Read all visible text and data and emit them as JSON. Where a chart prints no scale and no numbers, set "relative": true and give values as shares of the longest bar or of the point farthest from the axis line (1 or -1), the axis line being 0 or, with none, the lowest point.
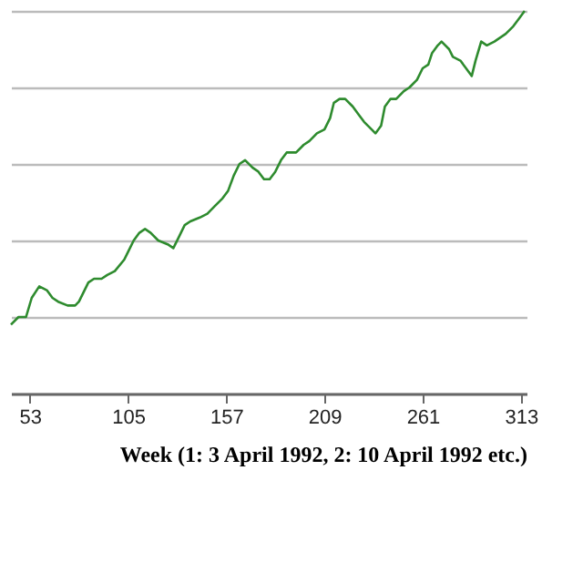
{
  "chart_data": {
    "type": "line",
    "relative": true,
    "xlabel": "Week (1: 3 April 1992, 2: 10 April 1992 etc.)",
    "xlim": [
      43,
      316
    ],
    "xticks": [
      53,
      105,
      157,
      209,
      261,
      313
    ],
    "grid": "y",
    "line_style": "solid",
    "marker": "none",
    "x": [
      43,
      47,
      51,
      54,
      58,
      62,
      65,
      68,
      73,
      77,
      79,
      84,
      87,
      91,
      94,
      98,
      103,
      105,
      108,
      111,
      114,
      117,
      121,
      126,
      129,
      132,
      135,
      138,
      143,
      147,
      151,
      155,
      158,
      161,
      164,
      167,
      171,
      174,
      177,
      180,
      183,
      186,
      189,
      194,
      198,
      201,
      205,
      209,
      212,
      214,
      217,
      220,
      224,
      227,
      230,
      234,
      236,
      239,
      241,
      244,
      247,
      251,
      254,
      258,
      261,
      264,
      266,
      269,
      271,
      275,
      277,
      281,
      284,
      287,
      289,
      292,
      295,
      299,
      302,
      305,
      309,
      312,
      315
    ],
    "series": [
      {
        "color": "#2e8b2e",
        "values": [
          0.18,
          0.2,
          0.2,
          0.25,
          0.28,
          0.27,
          0.25,
          0.24,
          0.23,
          0.23,
          0.24,
          0.29,
          0.3,
          0.3,
          0.31,
          0.32,
          0.35,
          0.37,
          0.4,
          0.42,
          0.43,
          0.42,
          0.4,
          0.39,
          0.38,
          0.41,
          0.44,
          0.45,
          0.46,
          0.47,
          0.49,
          0.51,
          0.53,
          0.57,
          0.6,
          0.61,
          0.59,
          0.58,
          0.56,
          0.56,
          0.58,
          0.61,
          0.63,
          0.63,
          0.65,
          0.66,
          0.68,
          0.69,
          0.72,
          0.76,
          0.77,
          0.77,
          0.75,
          0.73,
          0.71,
          0.69,
          0.68,
          0.7,
          0.75,
          0.77,
          0.77,
          0.79,
          0.8,
          0.82,
          0.85,
          0.86,
          0.89,
          0.91,
          0.92,
          0.9,
          0.88,
          0.87,
          0.85,
          0.83,
          0.87,
          0.92,
          0.91,
          0.92,
          0.93,
          0.94,
          0.96,
          0.98,
          1.0
        ]
      }
    ]
  }
}
